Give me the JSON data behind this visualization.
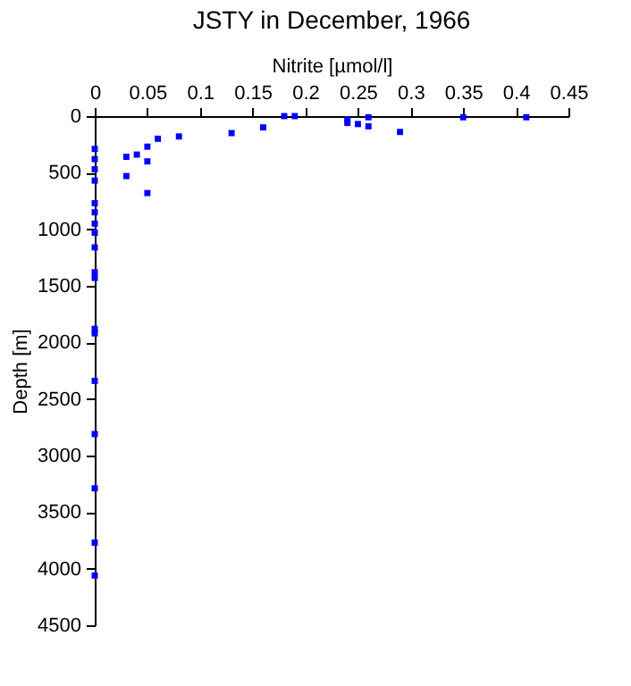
{
  "chart_data": {
    "type": "scatter",
    "title": "JSTY in December, 1966",
    "xlabel": "Nitrite [µmol/l]",
    "ylabel": "Depth [m]",
    "series": [
      {
        "color": "#0000ff",
        "x": [
          0.18,
          0.19,
          0.26,
          0.35,
          0.41,
          0.24,
          0.24,
          0.25,
          0.26,
          0.29,
          0.16,
          0.13,
          0.08,
          0.06,
          0.05,
          0.04,
          0.03,
          0.05,
          0.03,
          0.05,
          0,
          0,
          0,
          0,
          0,
          0,
          0,
          0,
          0,
          0,
          0,
          0,
          0,
          0,
          0,
          0,
          0,
          0
        ],
        "values": [
          0,
          0,
          10,
          10,
          10,
          30,
          60,
          70,
          90,
          140,
          100,
          150,
          180,
          200,
          270,
          340,
          360,
          400,
          530,
          680,
          290,
          380,
          470,
          570,
          770,
          850,
          950,
          1030,
          1160,
          1380,
          1430,
          1880,
          1920,
          2340,
          2810,
          3290,
          3770,
          4060
        ]
      }
    ],
    "xlim": [
      0,
      0.45
    ],
    "xticks": [
      0,
      0.05,
      0.1,
      0.15,
      0.2,
      0.25,
      0.3,
      0.35,
      0.4,
      0.45
    ],
    "ylim": [
      4500,
      0
    ],
    "yticks": [
      0,
      500,
      1000,
      1500,
      2000,
      2500,
      3000,
      3500,
      4000,
      4500
    ],
    "grid": false,
    "marker": "square"
  }
}
